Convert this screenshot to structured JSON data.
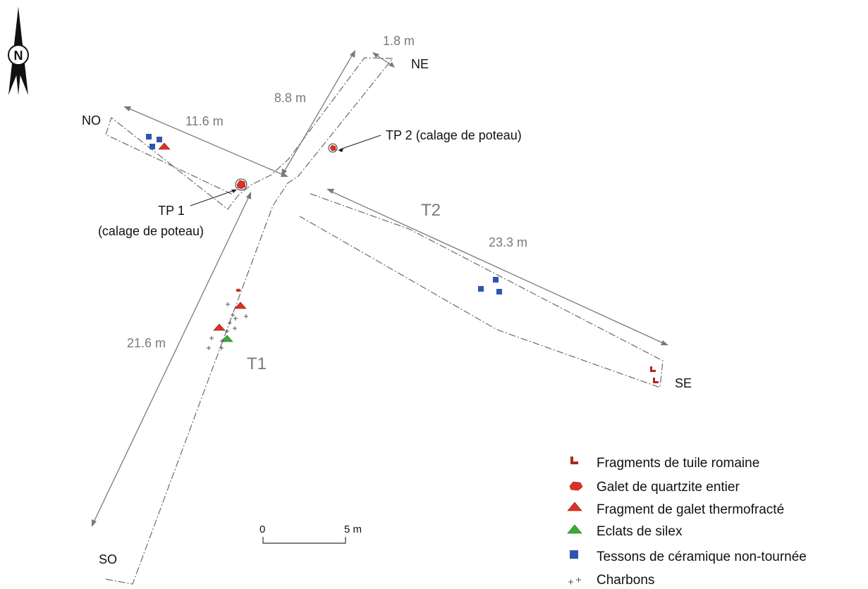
{
  "compass": {
    "north_label": "N"
  },
  "ends": {
    "ne": "NE",
    "no": "NO",
    "se": "SE",
    "so": "SO"
  },
  "trenches": {
    "t1": "T1",
    "t2": "T2"
  },
  "dimensions": {
    "width": "1.8 m",
    "ne_arm": "8.8 m",
    "no_arm": "11.6 m",
    "se_arm": "23.3 m",
    "so_arm": "21.6 m"
  },
  "features": {
    "tp1_line1": "TP 1",
    "tp1_line2": "(calage de poteau)",
    "tp2": "TP 2 (calage de poteau)"
  },
  "scale": {
    "zero": "0",
    "five": "5 m"
  },
  "legend": [
    {
      "label": "Fragments de tuile romaine",
      "icon": "tile-fragment-icon",
      "color": "#b0281f"
    },
    {
      "label": "Galet de quartzite entier",
      "icon": "pebble-icon",
      "color": "#e03024"
    },
    {
      "label": "Fragment de galet thermofracté",
      "icon": "red-triangle-icon",
      "color": "#e03024"
    },
    {
      "label": "Eclats de silex",
      "icon": "green-triangle-icon",
      "color": "#3aab3a"
    },
    {
      "label": "Tessons de céramique non-tournée",
      "icon": "blue-square-icon",
      "color": "#2f55b0"
    },
    {
      "label": "Charbons",
      "icon": "cross-icon",
      "color": "#555555"
    }
  ]
}
